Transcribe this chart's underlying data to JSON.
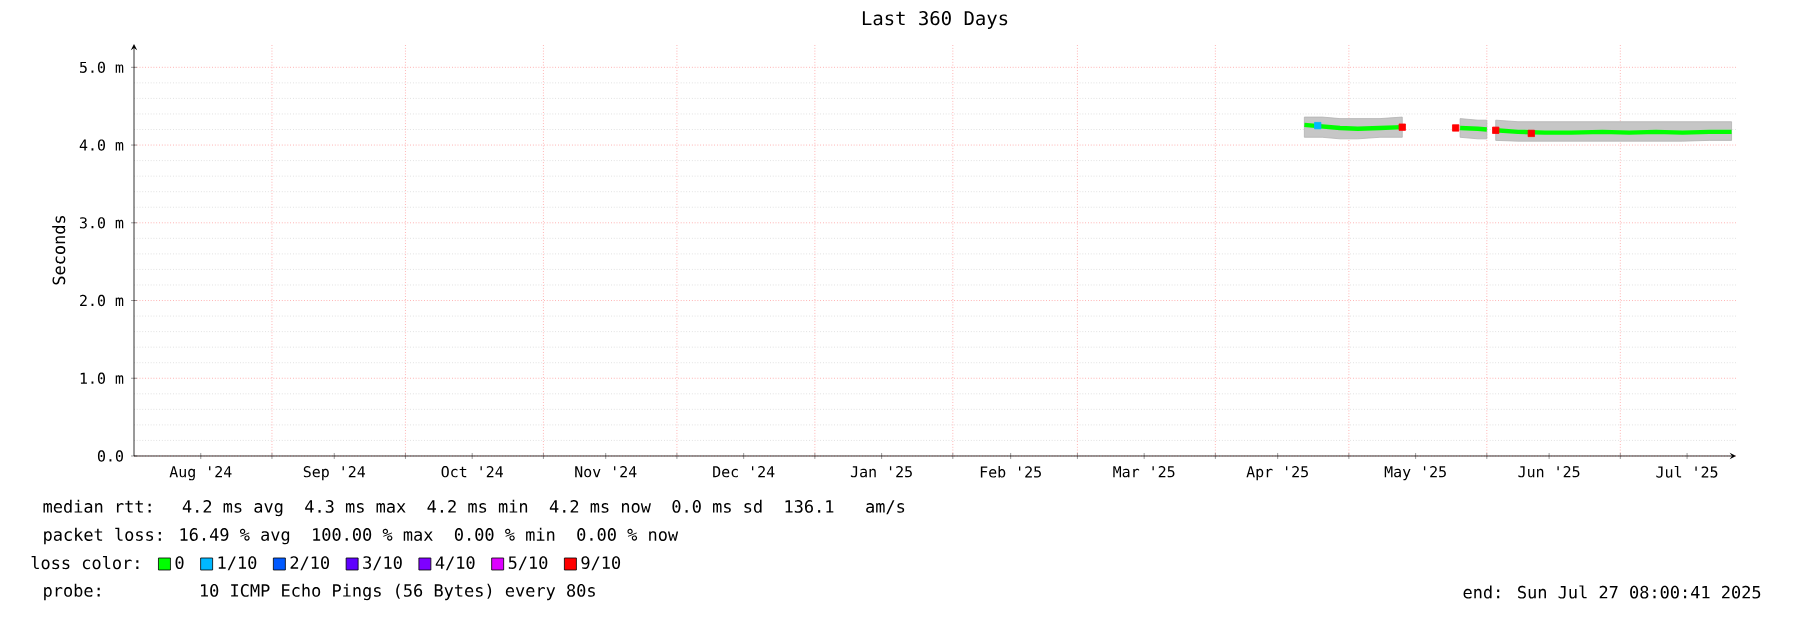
{
  "chart_data": {
    "type": "line",
    "title": "Last 360 Days",
    "ylabel": "Seconds",
    "xlim": [
      "2024-08-01",
      "2025-07-27"
    ],
    "xticks": [
      {
        "value": "2024-08-16",
        "label": "Aug '24"
      },
      {
        "value": "2024-09-15",
        "label": "Sep '24"
      },
      {
        "value": "2024-10-16",
        "label": "Oct '24"
      },
      {
        "value": "2024-11-15",
        "label": "Nov '24"
      },
      {
        "value": "2024-12-16",
        "label": "Dec '24"
      },
      {
        "value": "2025-01-16",
        "label": "Jan '25"
      },
      {
        "value": "2025-02-14",
        "label": "Feb '25"
      },
      {
        "value": "2025-03-16",
        "label": "Mar '25"
      },
      {
        "value": "2025-04-15",
        "label": "Apr '25"
      },
      {
        "value": "2025-05-16",
        "label": "May '25"
      },
      {
        "value": "2025-06-15",
        "label": "Jun '25"
      },
      {
        "value": "2025-07-16",
        "label": "Jul '25"
      },
      {
        "value": "2024-09-01",
        "label": null
      },
      {
        "value": "2024-10-01",
        "label": null
      },
      {
        "value": "2024-11-01",
        "label": null
      },
      {
        "value": "2024-12-01",
        "label": null
      },
      {
        "value": "2025-01-01",
        "label": null
      },
      {
        "value": "2025-02-01",
        "label": null
      },
      {
        "value": "2025-03-01",
        "label": null
      },
      {
        "value": "2025-04-01",
        "label": null
      },
      {
        "value": "2025-05-01",
        "label": null
      },
      {
        "value": "2025-06-01",
        "label": null
      },
      {
        "value": "2025-07-01",
        "label": null
      }
    ],
    "ylim": [
      0,
      5.3
    ],
    "yticks": [
      {
        "value": 0,
        "label": "0.0"
      },
      {
        "value": 1,
        "label": "1.0 m"
      },
      {
        "value": 2,
        "label": "2.0 m"
      },
      {
        "value": 3,
        "label": "3.0 m"
      },
      {
        "value": 4,
        "label": "4.0 m"
      },
      {
        "value": 5,
        "label": "5.0 m"
      }
    ],
    "grid": true,
    "legend": "bottom",
    "legend_title": "loss color:",
    "series": [
      {
        "name": "0",
        "color": "#00ff00",
        "x": [
          "2025-04-21",
          "2025-04-25",
          "2025-04-29",
          "2025-05-03",
          "2025-05-08",
          "2025-05-13",
          "2025-05-19",
          "2025-05-26",
          "2025-05-30",
          "2025-06-01",
          "2025-06-02",
          "2025-06-03",
          "2025-06-08",
          "2025-06-14",
          "2025-06-20",
          "2025-06-27",
          "2025-07-03",
          "2025-07-09",
          "2025-07-15",
          "2025-07-21",
          "2025-07-26"
        ],
        "values": [
          4.26,
          4.24,
          4.22,
          4.21,
          4.22,
          4.23,
          null,
          4.22,
          4.21,
          4.2,
          null,
          4.19,
          4.17,
          4.16,
          4.16,
          4.17,
          4.16,
          4.17,
          4.16,
          4.17,
          4.17
        ],
        "lower": [
          4.1,
          4.1,
          4.08,
          4.08,
          4.1,
          4.1,
          null,
          4.1,
          4.08,
          4.08,
          null,
          4.06,
          4.05,
          4.05,
          4.05,
          4.05,
          4.05,
          4.05,
          4.05,
          4.06,
          4.06
        ],
        "upper": [
          4.36,
          4.36,
          4.34,
          4.34,
          4.34,
          4.36,
          null,
          4.34,
          4.32,
          4.32,
          null,
          4.32,
          4.3,
          4.3,
          4.3,
          4.3,
          4.3,
          4.3,
          4.3,
          4.3,
          4.3
        ]
      },
      {
        "name": "1/10",
        "type": "scatter",
        "marker": "square",
        "color": "#00b8ff",
        "x": [
          "2025-04-24"
        ],
        "values": [
          4.25
        ]
      },
      {
        "name": "2/10",
        "type": "scatter",
        "marker": "square",
        "color": "#0059ff"
      },
      {
        "name": "3/10",
        "type": "scatter",
        "marker": "square",
        "color": "#5e00ff"
      },
      {
        "name": "4/10",
        "type": "scatter",
        "marker": "square",
        "color": "#7e00ff"
      },
      {
        "name": "5/10",
        "type": "scatter",
        "marker": "square",
        "color": "#dd00ff"
      },
      {
        "name": "9/10",
        "type": "scatter",
        "marker": "square",
        "color": "#ff0000",
        "x": [
          "2025-05-13",
          "2025-05-25",
          "2025-06-03",
          "2025-06-11"
        ],
        "values": [
          4.23,
          4.22,
          4.19,
          4.15
        ]
      }
    ],
    "annotations": [
      "median rtt:  4.2 ms avg  4.3 ms max  4.2 ms min  4.2 ms now  0.0 ms sd  136.1   am/s",
      "packet loss: 16.49 % avg  100.00 % max  0.00 % min  0.00 % now",
      "probe:       10 ICMP Echo Pings (56 Bytes) every 80s",
      "end: Sun Jul 27 08:00:41 2025"
    ]
  }
}
